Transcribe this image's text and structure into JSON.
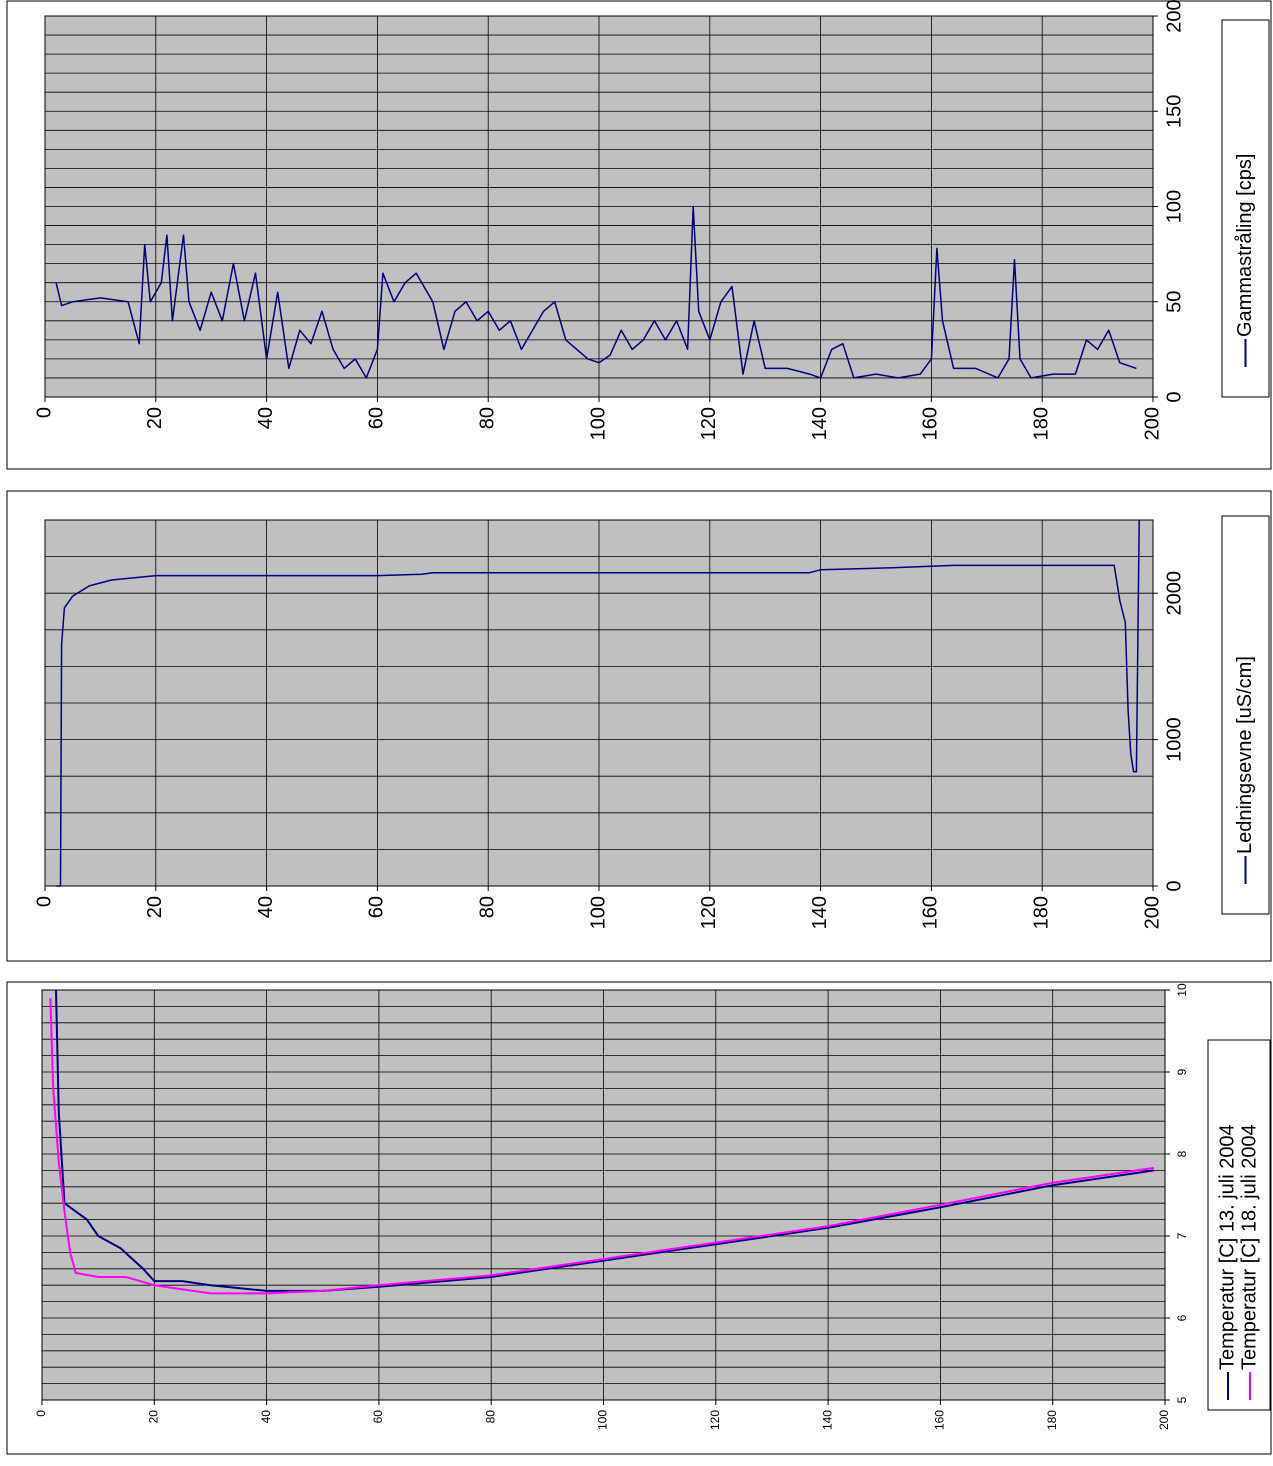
{
  "chart_data": [
    {
      "type": "line",
      "xlim": [
        0,
        200
      ],
      "xticks": [
        0,
        20,
        40,
        60,
        80,
        100,
        120,
        140,
        160,
        180,
        200
      ],
      "ylim": [
        0,
        200
      ],
      "yticks": [
        0,
        50,
        100,
        150,
        200
      ],
      "grid": true,
      "minor_grid_step": 10,
      "series": [
        {
          "name": "Gammastråling [cps]",
          "color": "#000080",
          "x": [
            2,
            3,
            5,
            10,
            15,
            17,
            18,
            19,
            21,
            22,
            23,
            25,
            26,
            28,
            30,
            32,
            34,
            36,
            38,
            40,
            42,
            44,
            46,
            48,
            50,
            52,
            54,
            56,
            58,
            60,
            61,
            63,
            65,
            67,
            70,
            72,
            74,
            76,
            78,
            80,
            82,
            84,
            86,
            88,
            90,
            92,
            94,
            96,
            98,
            100,
            102,
            104,
            106,
            108,
            110,
            112,
            114,
            116,
            117,
            118,
            120,
            122,
            124,
            126,
            128,
            130,
            134,
            138,
            140,
            142,
            144,
            146,
            150,
            154,
            158,
            160,
            161,
            162,
            164,
            168,
            172,
            174,
            175,
            176,
            178,
            182,
            186,
            188,
            190,
            192,
            194,
            197
          ],
          "values": [
            60,
            48,
            50,
            52,
            50,
            28,
            80,
            50,
            60,
            85,
            40,
            85,
            50,
            35,
            55,
            40,
            70,
            40,
            65,
            20,
            55,
            15,
            35,
            28,
            45,
            25,
            15,
            20,
            10,
            25,
            65,
            50,
            60,
            65,
            50,
            25,
            45,
            50,
            40,
            45,
            35,
            40,
            25,
            35,
            45,
            50,
            30,
            25,
            20,
            18,
            22,
            35,
            25,
            30,
            40,
            30,
            40,
            25,
            100,
            45,
            30,
            50,
            58,
            12,
            40,
            15,
            15,
            12,
            10,
            25,
            28,
            10,
            12,
            10,
            12,
            20,
            78,
            40,
            15,
            15,
            10,
            20,
            72,
            20,
            10,
            12,
            12,
            30,
            25,
            35,
            18,
            15
          ]
        }
      ]
    },
    {
      "type": "line",
      "xlim": [
        0,
        200
      ],
      "xticks": [
        0,
        20,
        40,
        60,
        80,
        100,
        120,
        140,
        160,
        180,
        200
      ],
      "ylim": [
        0,
        2500
      ],
      "yticks": [
        0,
        1000,
        2000
      ],
      "grid": true,
      "minor_grid_step": 250,
      "series": [
        {
          "name": "Ledningsevne [uS/cm]",
          "color": "#000080",
          "x": [
            2,
            2.8,
            3,
            3.5,
            5,
            8,
            12,
            20,
            60,
            68,
            70,
            138,
            140,
            150,
            164,
            193,
            194,
            195,
            195.5,
            196,
            196.5,
            197,
            197.5
          ],
          "values": [
            0,
            0,
            1650,
            1900,
            1980,
            2050,
            2090,
            2120,
            2120,
            2130,
            2140,
            2140,
            2160,
            2170,
            2190,
            2190,
            1950,
            1800,
            1200,
            900,
            780,
            780,
            2500
          ]
        }
      ]
    },
    {
      "type": "line",
      "xlim": [
        0,
        200
      ],
      "xticks": [
        0,
        20,
        40,
        60,
        80,
        100,
        120,
        140,
        160,
        180,
        200
      ],
      "ylim": [
        5,
        10
      ],
      "yticks": [
        5,
        6,
        7,
        8,
        9,
        10
      ],
      "grid": true,
      "minor_grid_step": 0.2,
      "series": [
        {
          "name": "Temperatur [C] 13. juli 2004",
          "color": "#000080",
          "x": [
            2.5,
            3,
            4,
            6,
            8,
            10,
            14,
            18,
            20,
            25,
            30,
            40,
            50,
            60,
            80,
            100,
            120,
            140,
            160,
            180,
            198
          ],
          "values": [
            10,
            8.5,
            7.4,
            7.3,
            7.2,
            7.0,
            6.85,
            6.6,
            6.45,
            6.45,
            6.4,
            6.33,
            6.33,
            6.38,
            6.5,
            6.7,
            6.9,
            7.1,
            7.35,
            7.62,
            7.8
          ]
        },
        {
          "name": "Temperatur [C] 18. juli 2004",
          "color": "#ff00ff",
          "x": [
            1.5,
            2,
            3,
            4,
            5,
            6,
            10,
            15,
            20,
            30,
            40,
            50,
            60,
            80,
            100,
            120,
            140,
            160,
            180,
            198
          ],
          "values": [
            9.9,
            8.8,
            7.9,
            7.3,
            6.8,
            6.55,
            6.5,
            6.5,
            6.4,
            6.3,
            6.3,
            6.33,
            6.4,
            6.52,
            6.72,
            6.92,
            7.12,
            7.38,
            7.65,
            7.83
          ]
        }
      ]
    }
  ]
}
